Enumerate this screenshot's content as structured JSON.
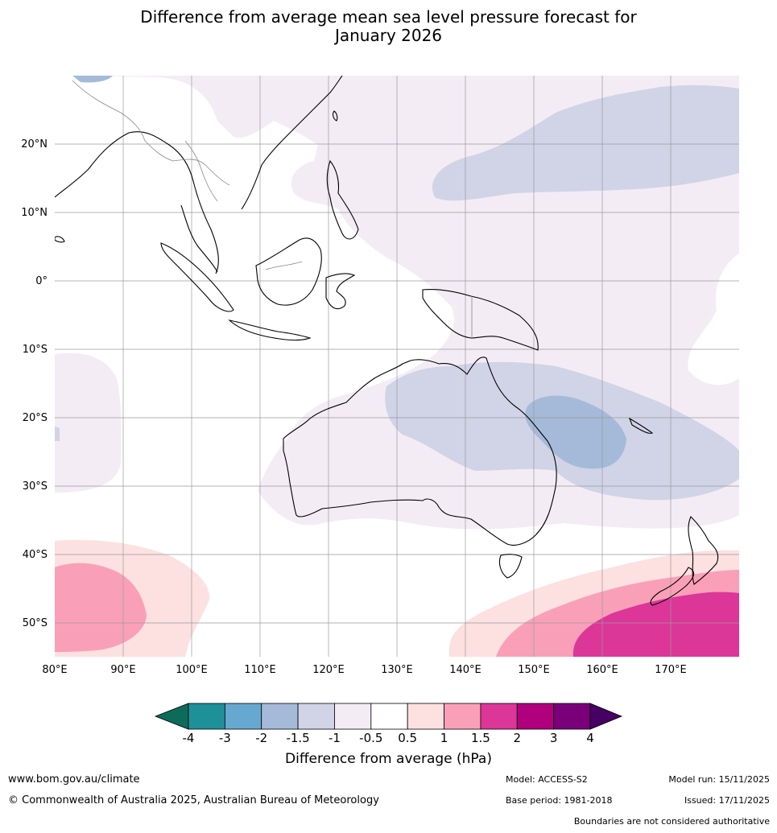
{
  "title_line1": "Difference from average mean sea level pressure forecast for",
  "title_line2": "January 2026",
  "lat_labels": [
    "20°N",
    "10°N",
    "0°",
    "10°S",
    "20°S",
    "30°S",
    "40°S",
    "50°S"
  ],
  "lon_labels": [
    "80°E",
    "90°E",
    "100°E",
    "110°E",
    "120°E",
    "130°E",
    "140°E",
    "150°E",
    "160°E",
    "170°E"
  ],
  "map_extent": {
    "lon_min": 80,
    "lon_max": 180,
    "lat_min": -55,
    "lat_max": 30
  },
  "colorbar": {
    "title": "Difference from average (hPa)",
    "tick_labels": [
      "-4",
      "-3",
      "-2",
      "-1.5",
      "-1",
      "-0.5",
      "0.5",
      "1",
      "1.5",
      "2",
      "3",
      "4"
    ],
    "colors": [
      "#0e6b5c",
      "#1e9098",
      "#67a8d0",
      "#a4bad8",
      "#d1d3e6",
      "#f3ecf5",
      "#ffffff",
      "#fde0e0",
      "#f9a0b8",
      "#dc3699",
      "#b0007d",
      "#7a007a",
      "#470063"
    ]
  },
  "footer": {
    "website": "www.bom.gov.au/climate",
    "copyright": "© Commonwealth of Australia 2025, Australian Bureau of Meteorology",
    "model": "Model: ACCESS-S2",
    "model_run": "Model run: 15/11/2025",
    "base_period": "Base period: 1981-2018",
    "issued": "Issued: 17/11/2025",
    "disclaimer": "Boundaries are not considered authoritative"
  }
}
